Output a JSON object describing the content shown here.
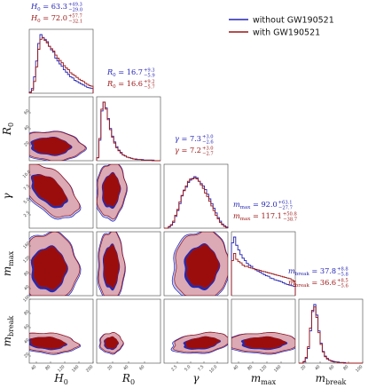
{
  "chart_data": {
    "type": "corner",
    "parameters": [
      {
        "key": "H0",
        "axis_label": "H",
        "axis_sub": "0",
        "ticks": [
          "40",
          "80",
          "120",
          "160",
          "200"
        ],
        "range": [
          20,
          200
        ]
      },
      {
        "key": "R0",
        "axis_label": "R",
        "axis_sub": "0",
        "ticks": [
          "20",
          "40",
          "60"
        ],
        "range": [
          0,
          80
        ]
      },
      {
        "key": "gamma",
        "axis_label": "γ",
        "axis_sub": "",
        "ticks": [
          "2.5",
          "5.0",
          "7.5",
          "10.0"
        ],
        "range": [
          0,
          12
        ]
      },
      {
        "key": "mmax",
        "axis_label": "m",
        "axis_sub": "max",
        "ticks": [
          "40",
          "80",
          "120",
          "160"
        ],
        "range": [
          20,
          200
        ]
      },
      {
        "key": "mbreak",
        "axis_label": "m",
        "axis_sub": "break",
        "ticks": [
          "20",
          "40",
          "60",
          "80",
          "100"
        ],
        "range": [
          10,
          100
        ]
      }
    ],
    "series": [
      {
        "name": "without GW190521",
        "color": "#2323b4"
      },
      {
        "name": "with GW190521",
        "color": "#9b1414"
      }
    ],
    "legend_position": "top-right",
    "stats": [
      {
        "param": "H0",
        "series": 0,
        "symbol": "H",
        "sub": "0",
        "median": "63.3",
        "plus": "+49.3",
        "minus": "−29.0"
      },
      {
        "param": "H0",
        "series": 1,
        "symbol": "H",
        "sub": "0",
        "median": "72.0",
        "plus": "+57.7",
        "minus": "−32.1"
      },
      {
        "param": "R0",
        "series": 0,
        "symbol": "R",
        "sub": "0",
        "median": "16.7",
        "plus": "+9.3",
        "minus": "−5.9"
      },
      {
        "param": "R0",
        "series": 1,
        "symbol": "R",
        "sub": "0",
        "median": "16.6",
        "plus": "+9.2",
        "minus": "−5.7"
      },
      {
        "param": "gamma",
        "series": 0,
        "symbol": "γ",
        "sub": "",
        "median": "7.3",
        "plus": "+3.0",
        "minus": "−2.6"
      },
      {
        "param": "gamma",
        "series": 1,
        "symbol": "γ",
        "sub": "",
        "median": "7.2",
        "plus": "+3.0",
        "minus": "−2.7"
      },
      {
        "param": "mmax",
        "series": 0,
        "symbol": "m",
        "sub": "max",
        "median": "92.0",
        "plus": "+63.1",
        "minus": "−27.7"
      },
      {
        "param": "mmax",
        "series": 1,
        "symbol": "m",
        "sub": "max",
        "median": "117.1",
        "plus": "+50.8",
        "minus": "−38.7"
      },
      {
        "param": "mbreak",
        "series": 0,
        "symbol": "m",
        "sub": "break",
        "median": "37.8",
        "plus": "+8.8",
        "minus": "−5.8"
      },
      {
        "param": "mbreak",
        "series": 1,
        "symbol": "m",
        "sub": "break",
        "median": "36.6",
        "plus": "+8.5",
        "minus": "−5.6"
      }
    ],
    "histograms": {
      "H0": {
        "without": [
          0.02,
          0.08,
          0.28,
          0.55,
          0.85,
          1.0,
          0.95,
          0.92,
          0.88,
          0.8,
          0.74,
          0.7,
          0.6,
          0.55,
          0.5,
          0.46,
          0.4,
          0.36,
          0.32,
          0.28,
          0.26,
          0.22,
          0.2,
          0.18,
          0.16,
          0.14,
          0.12,
          0.1,
          0.09,
          0.08
        ],
        "with": [
          0.01,
          0.05,
          0.2,
          0.45,
          0.75,
          0.92,
          0.95,
          0.9,
          0.86,
          0.8,
          0.76,
          0.72,
          0.65,
          0.6,
          0.56,
          0.52,
          0.47,
          0.43,
          0.4,
          0.35,
          0.32,
          0.3,
          0.27,
          0.24,
          0.22,
          0.2,
          0.17,
          0.15,
          0.13,
          0.12
        ]
      },
      "R0": {
        "without": [
          0.05,
          0.35,
          0.85,
          1.0,
          0.9,
          0.72,
          0.55,
          0.42,
          0.32,
          0.24,
          0.18,
          0.14,
          0.1,
          0.08,
          0.06,
          0.05,
          0.04,
          0.03,
          0.03,
          0.02,
          0.02,
          0.02,
          0.01,
          0.01,
          0.01,
          0.01,
          0.01,
          0.0,
          0.0,
          0.0
        ],
        "with": [
          0.05,
          0.38,
          0.88,
          1.0,
          0.88,
          0.7,
          0.53,
          0.4,
          0.3,
          0.22,
          0.17,
          0.13,
          0.1,
          0.08,
          0.06,
          0.05,
          0.04,
          0.03,
          0.02,
          0.02,
          0.02,
          0.01,
          0.01,
          0.01,
          0.01,
          0.01,
          0.0,
          0.0,
          0.0,
          0.0
        ]
      },
      "gamma": {
        "without": [
          0.0,
          0.0,
          0.02,
          0.05,
          0.1,
          0.2,
          0.3,
          0.42,
          0.55,
          0.65,
          0.7,
          0.78,
          0.82,
          0.85,
          0.88,
          0.86,
          0.8,
          0.76,
          0.72,
          0.66,
          0.58,
          0.5,
          0.42,
          0.34,
          0.26,
          0.18,
          0.12,
          0.07,
          0.04,
          0.02
        ],
        "with": [
          0.0,
          0.0,
          0.03,
          0.06,
          0.12,
          0.22,
          0.32,
          0.45,
          0.56,
          0.64,
          0.72,
          0.8,
          0.84,
          0.84,
          0.86,
          0.84,
          0.8,
          0.74,
          0.68,
          0.6,
          0.54,
          0.46,
          0.38,
          0.3,
          0.22,
          0.16,
          0.1,
          0.06,
          0.03,
          0.01
        ]
      },
      "mmax": {
        "without": [
          0.9,
          1.0,
          0.86,
          0.78,
          0.7,
          0.64,
          0.6,
          0.55,
          0.52,
          0.5,
          0.46,
          0.44,
          0.42,
          0.4,
          0.38,
          0.36,
          0.34,
          0.33,
          0.3,
          0.29,
          0.27,
          0.26,
          0.25,
          0.24,
          0.22,
          0.2,
          0.19,
          0.18,
          0.17,
          0.16
        ],
        "with": [
          0.6,
          0.72,
          0.62,
          0.58,
          0.56,
          0.52,
          0.5,
          0.5,
          0.48,
          0.47,
          0.46,
          0.45,
          0.44,
          0.43,
          0.42,
          0.41,
          0.4,
          0.39,
          0.38,
          0.37,
          0.36,
          0.35,
          0.34,
          0.33,
          0.32,
          0.31,
          0.3,
          0.29,
          0.27,
          0.25
        ]
      },
      "mbreak": {
        "without": [
          0.0,
          0.0,
          0.02,
          0.08,
          0.25,
          0.55,
          0.88,
          1.0,
          0.82,
          0.55,
          0.34,
          0.2,
          0.12,
          0.08,
          0.05,
          0.04,
          0.03,
          0.02,
          0.02,
          0.01,
          0.01,
          0.01,
          0.0,
          0.0,
          0.0,
          0.0,
          0.0,
          0.0,
          0.0,
          0.0
        ],
        "with": [
          0.0,
          0.0,
          0.03,
          0.1,
          0.28,
          0.6,
          0.9,
          0.96,
          0.78,
          0.52,
          0.32,
          0.19,
          0.11,
          0.07,
          0.05,
          0.03,
          0.02,
          0.02,
          0.01,
          0.01,
          0.01,
          0.0,
          0.0,
          0.0,
          0.0,
          0.0,
          0.0,
          0.0,
          0.0,
          0.0
        ]
      }
    },
    "contours": {
      "R0|H0": {
        "cx": 80,
        "cy": 18,
        "sx": 45,
        "sy": 9,
        "rho": -0.1
      },
      "gamma|H0": {
        "cx": 75,
        "cy": 7,
        "sx": 40,
        "sy": 2.5,
        "rho": -0.55
      },
      "gamma|R0": {
        "cx": 18,
        "cy": 7,
        "sx": 9,
        "sy": 2.6,
        "rho": 0.1
      },
      "mmax|H0": {
        "cx": 75,
        "cy": 95,
        "sx": 40,
        "sy": 50,
        "rho": 0.0
      },
      "mmax|R0": {
        "cx": 18,
        "cy": 100,
        "sx": 8,
        "sy": 50,
        "rho": 0.0
      },
      "mmax|gamma": {
        "cx": 7,
        "cy": 100,
        "sx": 2.6,
        "sy": 50,
        "rho": 0.05
      },
      "mbreak|H0": {
        "cx": 70,
        "cy": 38,
        "sx": 42,
        "sy": 7,
        "rho": -0.2
      },
      "mbreak|R0": {
        "cx": 18,
        "cy": 38,
        "sx": 7,
        "sy": 7,
        "rho": 0.0
      },
      "mbreak|gamma": {
        "cx": 7,
        "cy": 38,
        "sx": 2.7,
        "sy": 7,
        "rho": 0.3
      },
      "mbreak|mmax": {
        "cx": 110,
        "cy": 38,
        "sx": 50,
        "sy": 7,
        "rho": 0.0
      }
    }
  }
}
